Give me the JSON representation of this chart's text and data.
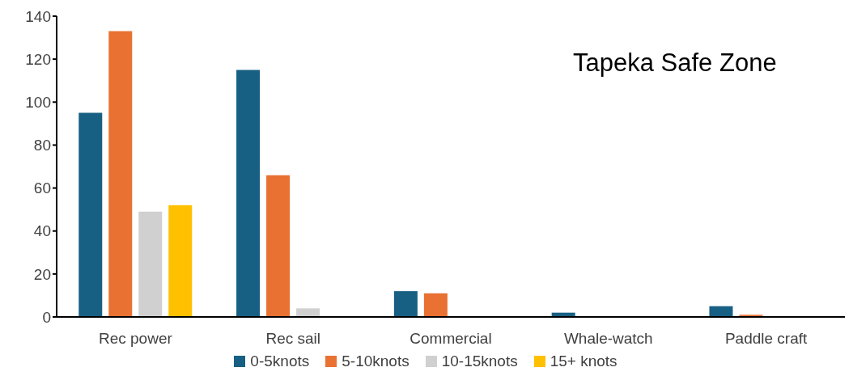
{
  "chart_data": {
    "type": "bar",
    "title": "Tapeka Safe Zone",
    "categories": [
      "Rec power",
      "Rec sail",
      "Commercial",
      "Whale-watch",
      "Paddle craft"
    ],
    "series": [
      {
        "name": "0-5knots",
        "color": "#176083",
        "values": [
          95,
          115,
          12,
          2,
          5
        ]
      },
      {
        "name": "5-10knots",
        "color": "#e97132",
        "values": [
          133,
          66,
          11,
          0,
          1
        ]
      },
      {
        "name": "10-15knots",
        "color": "#d0d0d0",
        "values": [
          49,
          4,
          0,
          0,
          0
        ]
      },
      {
        "name": "15+ knots",
        "color": "#ffc000",
        "values": [
          52,
          0,
          0,
          0,
          0
        ]
      }
    ],
    "ylim": [
      0,
      140
    ],
    "yticks": [
      0,
      20,
      40,
      60,
      80,
      100,
      120,
      140
    ],
    "grid": false,
    "legend": "bottom"
  }
}
